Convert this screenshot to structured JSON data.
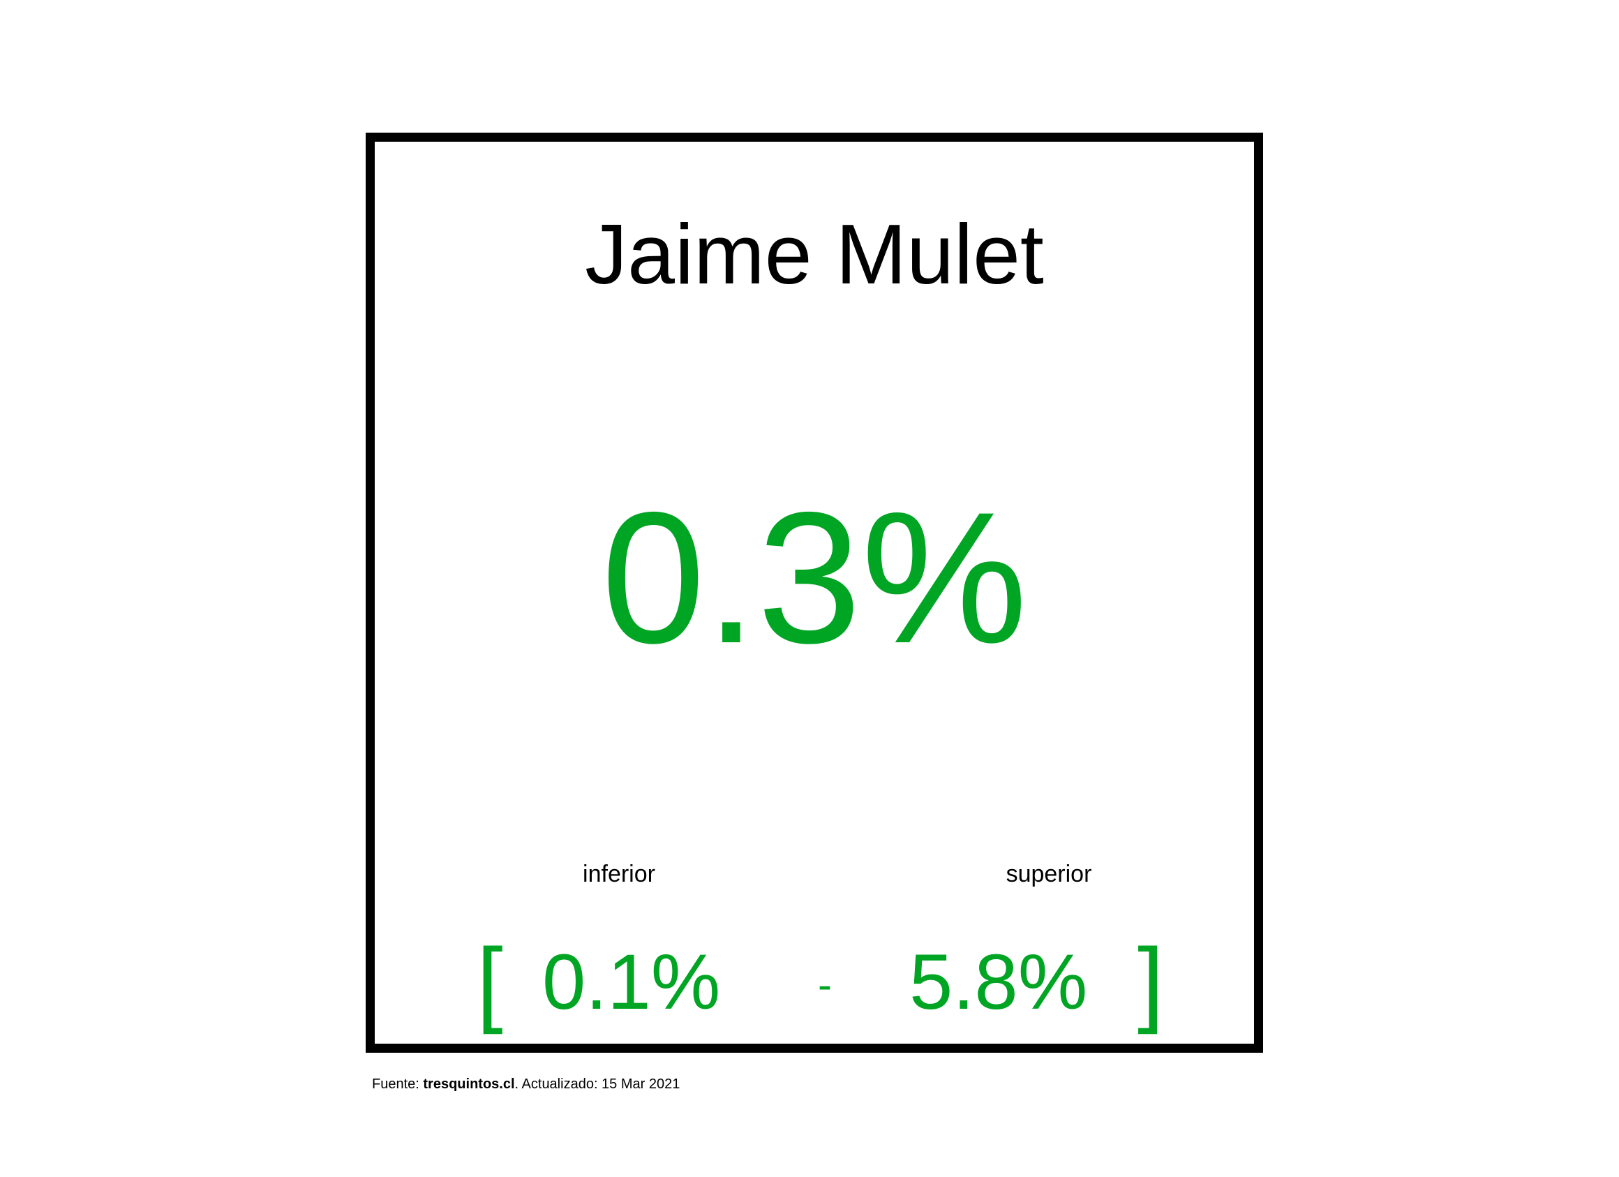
{
  "card": {
    "name": "Jaime Mulet",
    "value": "0.3%",
    "inferior_label": "inferior",
    "superior_label": "superior",
    "open_bracket": "[",
    "inferior_value": "0.1%",
    "separator": "-",
    "superior_value": "5.8%",
    "close_bracket": "]"
  },
  "footer": {
    "prefix": "Fuente: ",
    "source": "tresquintos.cl",
    "suffix": ". Actualizado: 15 Mar 2021"
  },
  "colors": {
    "value": "#00a523",
    "border": "#000000",
    "text": "#000000"
  }
}
